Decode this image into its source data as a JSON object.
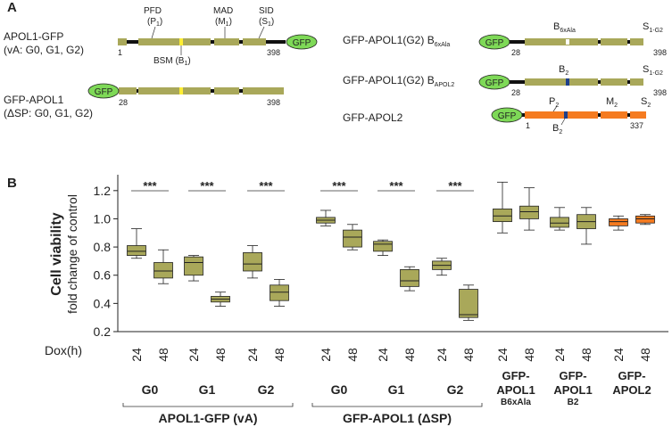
{
  "colors": {
    "olive": "#a9a85a",
    "olive_dark": "#6f6e2e",
    "orange": "#f57b20",
    "gfp": "#7ed957",
    "linker": "#111111",
    "bsm_yellow": "#ffee33",
    "b2_blue": "#1e3f8a",
    "white_mark": "#ffffff"
  },
  "panel_a": {
    "panel_label": "A",
    "constructs": [
      {
        "id": "apol1-gfp",
        "name": "APOL1-GFP",
        "sub": "(vA: G0, G1, G2)",
        "start": "1",
        "end": "398",
        "domains": {
          "pfd": "PFD",
          "pfd_sub": "(P",
          "pfd_idx": "1",
          "mad": "MAD",
          "mad_sub": "(M",
          "mad_idx": "1",
          "sid": "SID",
          "sid_sub": "(S",
          "sid_idx": "1",
          "bsm": "BSM (B",
          "bsm_idx": "1"
        },
        "gfp": "GFP"
      },
      {
        "id": "gfp-apol1",
        "name": "GFP-APOL1",
        "sub": "(ΔSP: G0, G1, G2)",
        "start": "28",
        "end": "398",
        "gfp": "GFP"
      },
      {
        "id": "b6xala",
        "name": "GFP-APOL1(G2) B",
        "name_sub": "6xAla",
        "start": "28",
        "end": "398",
        "mark_label": "B",
        "mark_sub": "6xAla",
        "s_label": "S",
        "s_sub": "1-G2",
        "gfp": "GFP"
      },
      {
        "id": "bapol2",
        "name": "GFP-APOL1(G2) B",
        "name_sub": "APOL2",
        "start": "28",
        "end": "398",
        "mark_label": "B",
        "mark_sub": "2",
        "s_label": "S",
        "s_sub": "1-G2",
        "gfp": "GFP"
      },
      {
        "id": "apol2",
        "name": "GFP-APOL2",
        "start": "1",
        "end": "337",
        "p_label": "P",
        "p_sub": "2",
        "m_label": "M",
        "m_sub": "2",
        "s_label": "S",
        "s_sub": "2",
        "b_label": "B",
        "b_sub": "2",
        "gfp": "GFP"
      }
    ]
  },
  "chart_data": {
    "type": "boxplot",
    "panel_label": "B",
    "ylabel_main": "Cell viability",
    "ylabel_sub": "fold change of control",
    "ylim": [
      0.2,
      1.3
    ],
    "yticks": [
      "0.2",
      "0.4",
      "0.6",
      "0.8",
      "1.0",
      "1.2"
    ],
    "dox_label": "Dox(h)",
    "significance": "***",
    "groups": [
      {
        "name": "G0",
        "color": "olive",
        "boxes": [
          {
            "dox": "24",
            "min": 0.72,
            "q1": 0.74,
            "median": 0.77,
            "q3": 0.81,
            "max": 0.93
          },
          {
            "dox": "48",
            "min": 0.54,
            "q1": 0.58,
            "median": 0.63,
            "q3": 0.69,
            "max": 0.78
          }
        ],
        "sig": true
      },
      {
        "name": "G1",
        "color": "olive",
        "boxes": [
          {
            "dox": "24",
            "min": 0.56,
            "q1": 0.6,
            "median": 0.69,
            "q3": 0.73,
            "max": 0.74
          },
          {
            "dox": "48",
            "min": 0.38,
            "q1": 0.41,
            "median": 0.43,
            "q3": 0.45,
            "max": 0.48
          }
        ],
        "sig": true
      },
      {
        "name": "G2",
        "color": "olive",
        "boxes": [
          {
            "dox": "24",
            "min": 0.58,
            "q1": 0.63,
            "median": 0.68,
            "q3": 0.76,
            "max": 0.81
          },
          {
            "dox": "48",
            "min": 0.38,
            "q1": 0.42,
            "median": 0.48,
            "q3": 0.53,
            "max": 0.57
          }
        ],
        "sig": true
      },
      {
        "name": "G0",
        "color": "olive",
        "boxes": [
          {
            "dox": "24",
            "min": 0.95,
            "q1": 0.97,
            "median": 0.99,
            "q3": 1.01,
            "max": 1.06
          },
          {
            "dox": "48",
            "min": 0.78,
            "q1": 0.8,
            "median": 0.87,
            "q3": 0.92,
            "max": 0.96
          }
        ],
        "sig": true
      },
      {
        "name": "G1",
        "color": "olive",
        "boxes": [
          {
            "dox": "24",
            "min": 0.74,
            "q1": 0.77,
            "median": 0.82,
            "q3": 0.84,
            "max": 0.85
          },
          {
            "dox": "48",
            "min": 0.49,
            "q1": 0.52,
            "median": 0.56,
            "q3": 0.64,
            "max": 0.66
          }
        ],
        "sig": true
      },
      {
        "name": "G2",
        "color": "olive",
        "boxes": [
          {
            "dox": "24",
            "min": 0.6,
            "q1": 0.64,
            "median": 0.67,
            "q3": 0.7,
            "max": 0.72
          },
          {
            "dox": "48",
            "min": 0.28,
            "q1": 0.3,
            "median": 0.32,
            "q3": 0.5,
            "max": 0.53
          }
        ],
        "sig": true
      },
      {
        "name": "GFP-\nAPOL1",
        "sub": "B6xAla",
        "color": "olive",
        "boxes": [
          {
            "dox": "24",
            "min": 0.9,
            "q1": 0.98,
            "median": 1.02,
            "q3": 1.07,
            "max": 1.26
          },
          {
            "dox": "48",
            "min": 0.92,
            "q1": 1.0,
            "median": 1.05,
            "q3": 1.09,
            "max": 1.22
          }
        ],
        "sig": false
      },
      {
        "name": "GFP-\nAPOL1",
        "sub": "B2",
        "color": "olive",
        "boxes": [
          {
            "dox": "24",
            "min": 0.92,
            "q1": 0.94,
            "median": 0.97,
            "q3": 1.01,
            "max": 1.08
          },
          {
            "dox": "48",
            "min": 0.82,
            "q1": 0.93,
            "median": 0.98,
            "q3": 1.03,
            "max": 1.08
          }
        ],
        "sig": false
      },
      {
        "name": "GFP-\nAPOL2",
        "sub": "",
        "color": "orange",
        "boxes": [
          {
            "dox": "24",
            "min": 0.92,
            "q1": 0.95,
            "median": 0.98,
            "q3": 1.0,
            "max": 1.02
          },
          {
            "dox": "48",
            "min": 0.96,
            "q1": 0.97,
            "median": 1.0,
            "q3": 1.02,
            "max": 1.03
          }
        ],
        "sig": false
      }
    ],
    "brackets": [
      {
        "label": "APOL1-GFP (vA)",
        "from": 0,
        "to": 2
      },
      {
        "label": "GFP-APOL1 (ΔSP)",
        "from": 3,
        "to": 5
      }
    ]
  }
}
